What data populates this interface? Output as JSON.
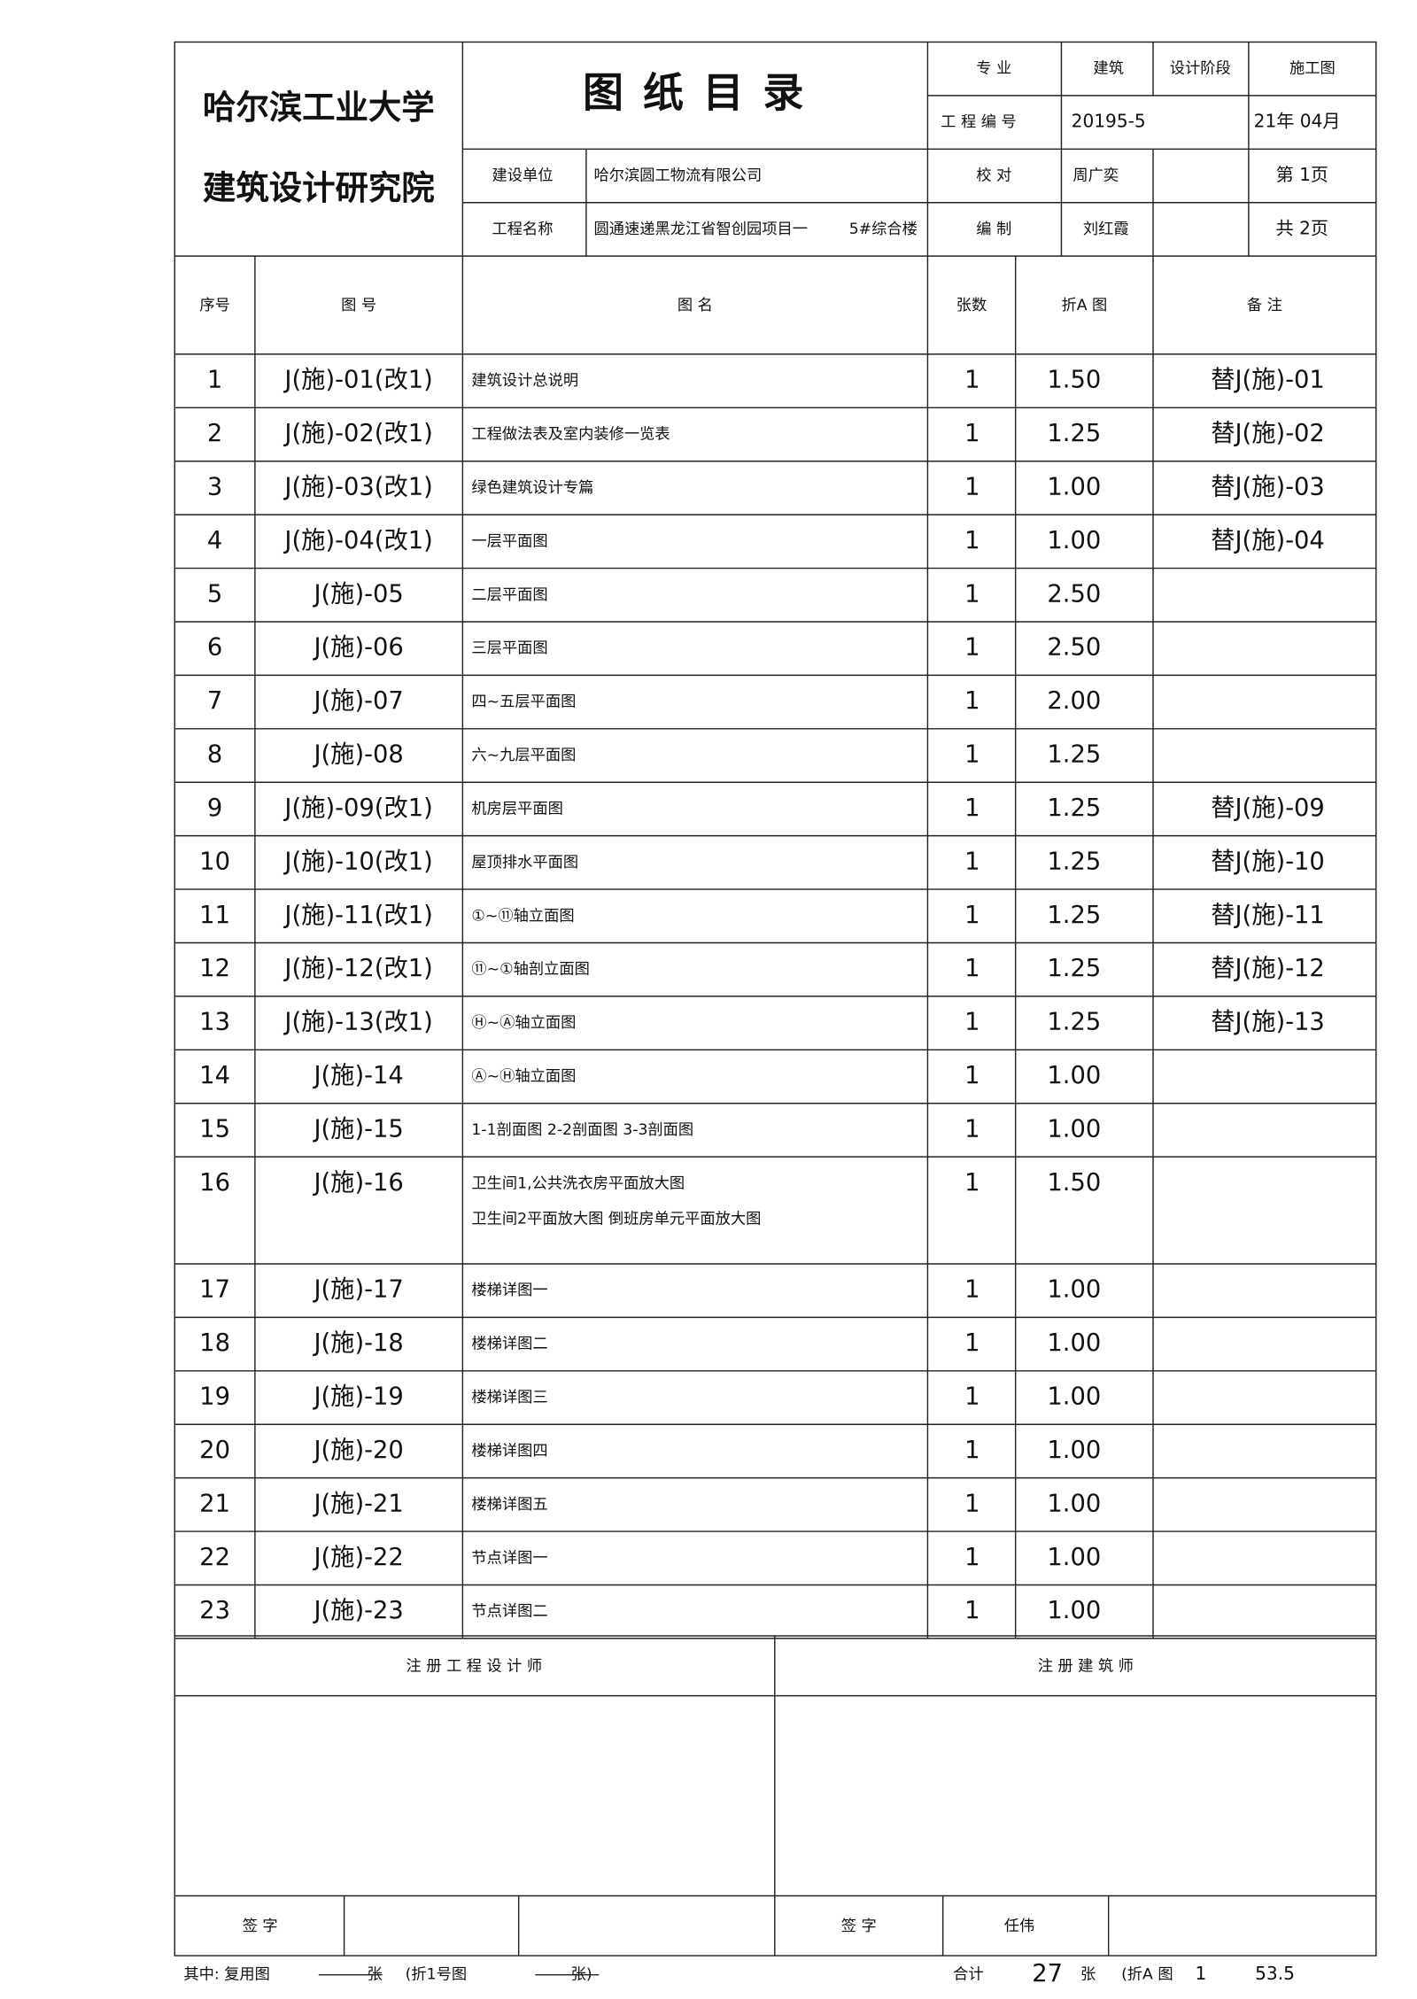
{
  "header": {
    "org": [
      "哈尔滨工业大学",
      "建筑设计研究院"
    ],
    "title": "图 纸 目 录",
    "major_label": "专 业",
    "major": "建筑",
    "stage_label": "设计阶段",
    "stage": "施工图",
    "project_no_label": "工 程 编 号",
    "project_no": "20195-5",
    "date": "21年 04月",
    "client_label": "建设单位",
    "client": "哈尔滨圆工物流有限公司",
    "check_label": "校 对",
    "checker": "周广奕",
    "page": "第 1页",
    "project_label": "工程名称",
    "project": "圆通速递黑龙江省智创园项目一",
    "building": "5#综合楼",
    "author_label": "编 制",
    "author": "刘红霞",
    "total_pages": "共 2页"
  },
  "table": {
    "columns": [
      "序号",
      "图 号",
      "图 名",
      "张数",
      "折A 图",
      "备 注"
    ],
    "rows": [
      [
        "1",
        "J(施)-01(改1)",
        [
          "建筑设计总说明"
        ],
        "1",
        "1.50",
        "替J(施)-01"
      ],
      [
        "2",
        "J(施)-02(改1)",
        [
          "工程做法表及室内装修一览表"
        ],
        "1",
        "1.25",
        "替J(施)-02"
      ],
      [
        "3",
        "J(施)-03(改1)",
        [
          "绿色建筑设计专篇"
        ],
        "1",
        "1.00",
        "替J(施)-03"
      ],
      [
        "4",
        "J(施)-04(改1)",
        [
          "一层平面图"
        ],
        "1",
        "1.00",
        "替J(施)-04"
      ],
      [
        "5",
        "J(施)-05",
        [
          "二层平面图"
        ],
        "1",
        "2.50",
        null
      ],
      [
        "6",
        "J(施)-06",
        [
          "三层平面图"
        ],
        "1",
        "2.50",
        null
      ],
      [
        "7",
        "J(施)-07",
        [
          "四~五层平面图"
        ],
        "1",
        "2.00",
        null
      ],
      [
        "8",
        "J(施)-08",
        [
          "六~九层平面图"
        ],
        "1",
        "1.25",
        null
      ],
      [
        "9",
        "J(施)-09(改1)",
        [
          "机房层平面图"
        ],
        "1",
        "1.25",
        "替J(施)-09"
      ],
      [
        "10",
        "J(施)-10(改1)",
        [
          "屋顶排水平面图"
        ],
        "1",
        "1.25",
        "替J(施)-10"
      ],
      [
        "11",
        "J(施)-11(改1)",
        [
          "①~⑪轴立面图"
        ],
        "1",
        "1.25",
        "替J(施)-11"
      ],
      [
        "12",
        "J(施)-12(改1)",
        [
          "⑪~①轴剖立面图"
        ],
        "1",
        "1.25",
        "替J(施)-12"
      ],
      [
        "13",
        "J(施)-13(改1)",
        [
          "Ⓗ~Ⓐ轴立面图"
        ],
        "1",
        "1.25",
        "替J(施)-13"
      ],
      [
        "14",
        "J(施)-14",
        [
          "Ⓐ~Ⓗ轴立面图"
        ],
        "1",
        "1.00",
        null
      ],
      [
        "15",
        "J(施)-15",
        [
          "1-1剖面图 2-2剖面图 3-3剖面图"
        ],
        "1",
        "1.00",
        null
      ],
      [
        "16",
        "J(施)-16",
        [
          "卫生间1,公共洗衣房平面放大图",
          "卫生间2平面放大图          倒班房单元平面放大图"
        ],
        "1",
        "1.50",
        null
      ],
      [
        "17",
        "J(施)-17",
        [
          "楼梯详图一"
        ],
        "1",
        "1.00",
        null
      ],
      [
        "18",
        "J(施)-18",
        [
          "楼梯详图二"
        ],
        "1",
        "1.00",
        null
      ],
      [
        "19",
        "J(施)-19",
        [
          "楼梯详图三"
        ],
        "1",
        "1.00",
        null
      ],
      [
        "20",
        "J(施)-20",
        [
          "楼梯详图四"
        ],
        "1",
        "1.00",
        null
      ],
      [
        "21",
        "J(施)-21",
        [
          "楼梯详图五"
        ],
        "1",
        "1.00",
        null
      ],
      [
        "22",
        "J(施)-22",
        [
          "节点详图一"
        ],
        "1",
        "1.00",
        null
      ],
      [
        "23",
        "J(施)-23",
        [
          "节点详图二"
        ],
        "1",
        "1.00",
        null
      ]
    ]
  },
  "signatures": {
    "engineer": "注 册 工 程 设 计 师",
    "architect": "注 册 建 筑 师",
    "sign_label": "签 字",
    "sign_label2": "签 字",
    "signer": "任伟"
  },
  "footer": {
    "reuse_label": "其中: 复用图",
    "unit1": "张",
    "fold_label": "(折1号图",
    "unit2": "张)",
    "total_label": "合计",
    "total": "27",
    "unit3": "张",
    "fold_a_label": "(折A 图",
    "fold_a_no": "1",
    "fold_a_total": "53.5"
  }
}
